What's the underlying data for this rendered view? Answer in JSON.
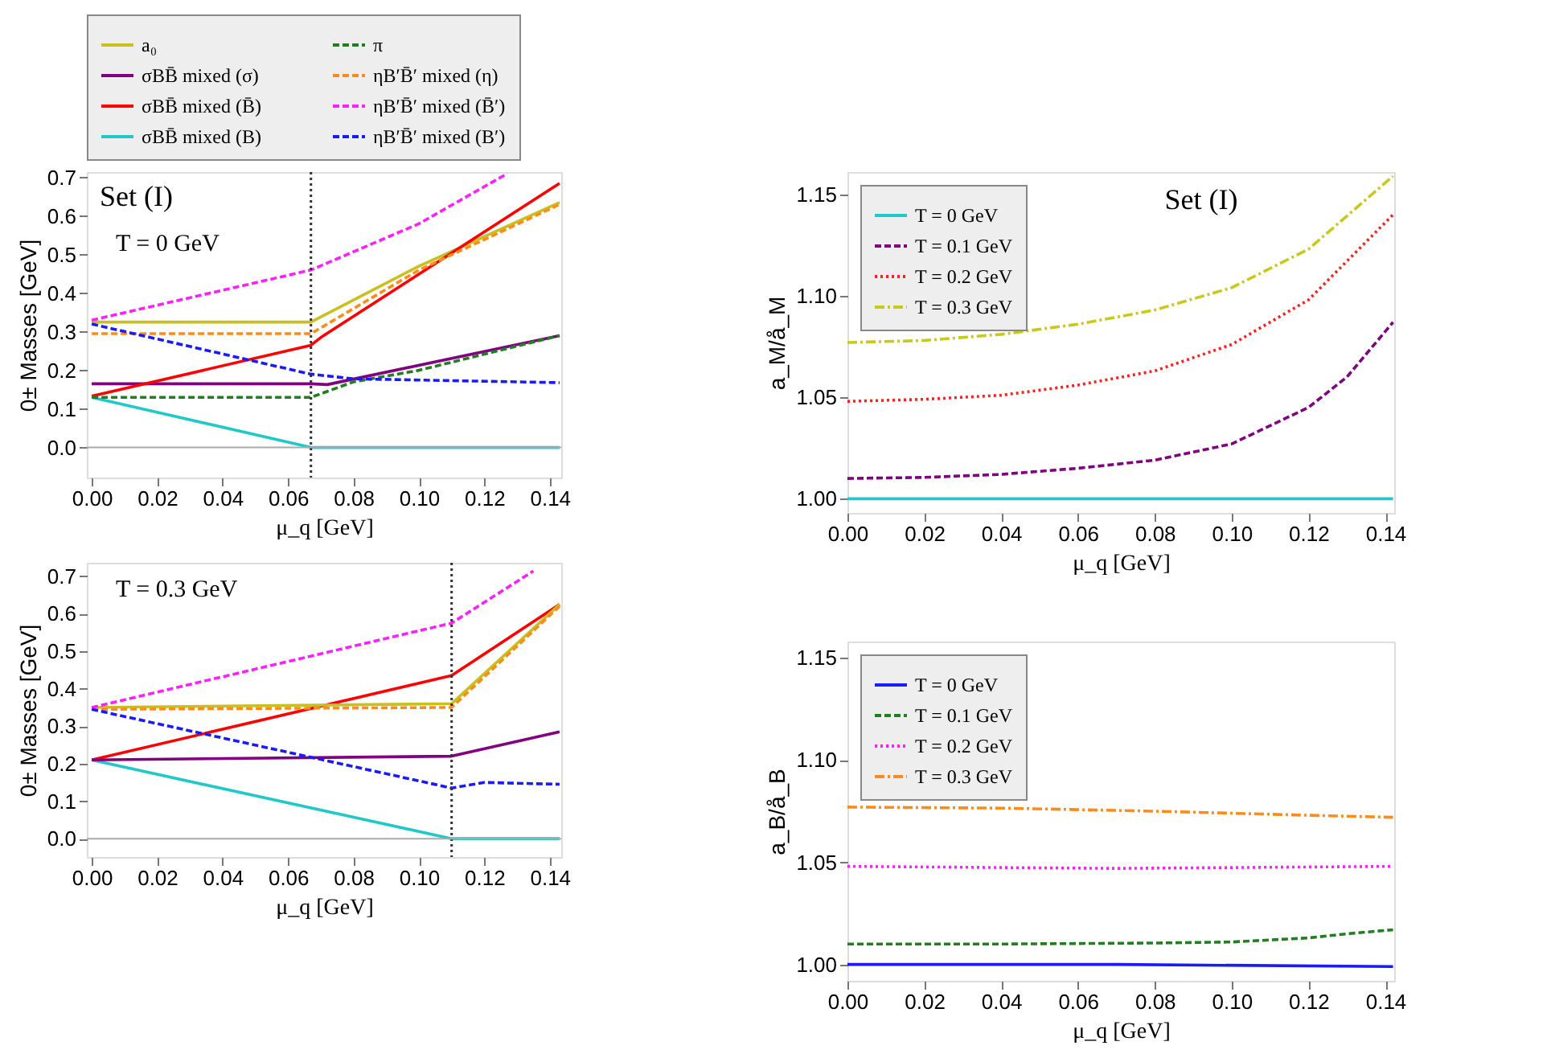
{
  "chart_data": [
    {
      "type": "line",
      "xlabel": "μ_q [GeV]",
      "ylabel": "0± Masses [GeV]",
      "xlim": [
        -0.0015,
        0.1435
      ],
      "ylim": [
        -0.078,
        0.714
      ],
      "xticks": [
        {
          "value": 0,
          "label": "0.00"
        },
        {
          "value": 0.02,
          "label": "0.02"
        },
        {
          "value": 0.04,
          "label": "0.04"
        },
        {
          "value": 0.06,
          "label": "0.06"
        },
        {
          "value": 0.08,
          "label": "0.08"
        },
        {
          "value": 0.1,
          "label": "0.10"
        },
        {
          "value": 0.12,
          "label": "0.12"
        },
        {
          "value": 0.14,
          "label": "0.14"
        }
      ],
      "yticks": [
        {
          "value": 0,
          "label": "0.0"
        },
        0.1,
        0.2,
        0.3,
        0.4,
        0.5,
        0.6,
        0.7
      ],
      "grid": false,
      "legend": "top",
      "annotations": [
        "Set (I)",
        "T = 0 GeV"
      ],
      "ref_lines": [
        {
          "axis": "x",
          "value": 0.067,
          "color": "#333333",
          "line_style": "dotted"
        },
        {
          "axis": "y",
          "value": 0,
          "color": "#aaaaaa",
          "line_style": "solid"
        }
      ],
      "series": [
        {
          "name": "a₀",
          "color": "#c8c020",
          "line_style": "solid",
          "x": [
            0,
            0.067,
            0.1,
            0.143
          ],
          "values": [
            0.325,
            0.325,
            0.47,
            0.635
          ]
        },
        {
          "name": "σBB̄ mixed (σ)",
          "color": "#800080",
          "line_style": "solid",
          "x": [
            0,
            0.067,
            0.072,
            0.143
          ],
          "values": [
            0.165,
            0.165,
            0.163,
            0.29
          ]
        },
        {
          "name": "σBB̄ mixed (B̄)",
          "color": "#ff0000",
          "line_style": "solid",
          "x": [
            0,
            0.067,
            0.07,
            0.143
          ],
          "values": [
            0.133,
            0.265,
            0.285,
            0.685
          ]
        },
        {
          "name": "σBB̄ mixed (B)",
          "color": "#20c8c8",
          "line_style": "solid",
          "x": [
            0,
            0.067,
            0.143
          ],
          "values": [
            0.13,
            0,
            0
          ]
        },
        {
          "name": "π",
          "color": "#208020",
          "line_style": "dashed",
          "x": [
            0,
            0.067,
            0.08,
            0.1,
            0.143
          ],
          "values": [
            0.13,
            0.13,
            0.17,
            0.2,
            0.29
          ]
        },
        {
          "name": "ηB′B̄′ mixed (η)",
          "color": "#ff8c1a",
          "line_style": "dashed",
          "x": [
            0,
            0.067,
            0.1,
            0.143
          ],
          "values": [
            0.295,
            0.295,
            0.46,
            0.63
          ]
        },
        {
          "name": "ηB′B̄′ mixed (B̄′)",
          "color": "#ff20ff",
          "line_style": "dashed",
          "x": [
            0,
            0.067,
            0.1,
            0.127
          ],
          "values": [
            0.33,
            0.46,
            0.58,
            0.71
          ]
        },
        {
          "name": "ηB′B̄′ mixed (B′)",
          "color": "#1a1aff",
          "line_style": "dashed",
          "x": [
            0,
            0.067,
            0.08,
            0.143
          ],
          "values": [
            0.32,
            0.19,
            0.178,
            0.168
          ]
        }
      ]
    },
    {
      "type": "line",
      "xlabel": "μ_q [GeV]",
      "ylabel": "a_M/å_M",
      "xlim": [
        0,
        0.1423
      ],
      "ylim": [
        0.993,
        1.161
      ],
      "xticks": [
        {
          "value": 0,
          "label": "0.00"
        },
        {
          "value": 0.02,
          "label": "0.02"
        },
        {
          "value": 0.04,
          "label": "0.04"
        },
        {
          "value": 0.06,
          "label": "0.06"
        },
        {
          "value": 0.08,
          "label": "0.08"
        },
        {
          "value": 0.1,
          "label": "0.10"
        },
        {
          "value": 0.12,
          "label": "0.12"
        },
        {
          "value": 0.14,
          "label": "0.14"
        }
      ],
      "yticks": [
        {
          "value": 1,
          "label": "1.00"
        },
        1.05,
        {
          "value": 1.1,
          "label": "1.10"
        },
        1.15
      ],
      "grid": false,
      "legend": "top left",
      "annotations": [
        "Set (I)"
      ],
      "series": [
        {
          "name": "T = 0 GeV",
          "color": "#20c8c8",
          "line_style": "solid",
          "x": [
            0,
            0.142
          ],
          "values": [
            1.0,
            1.0
          ]
        },
        {
          "name": "T = 0.1 GeV",
          "color": "#800080",
          "line_style": "dashed",
          "x": [
            0,
            0.02,
            0.04,
            0.06,
            0.08,
            0.1,
            0.12,
            0.13,
            0.142
          ],
          "values": [
            1.01,
            1.0105,
            1.012,
            1.015,
            1.019,
            1.027,
            1.045,
            1.06,
            1.087
          ]
        },
        {
          "name": "T = 0.2 GeV",
          "color": "#ff2020",
          "line_style": "dotted",
          "x": [
            0,
            0.02,
            0.04,
            0.06,
            0.08,
            0.1,
            0.12,
            0.142
          ],
          "values": [
            1.048,
            1.049,
            1.051,
            1.056,
            1.063,
            1.076,
            1.098,
            1.14
          ]
        },
        {
          "name": "T = 0.3 GeV",
          "color": "#c8c820",
          "line_style": "dashdot",
          "x": [
            0,
            0.02,
            0.04,
            0.06,
            0.08,
            0.1,
            0.12,
            0.142
          ],
          "values": [
            1.077,
            1.078,
            1.081,
            1.086,
            1.093,
            1.104,
            1.123,
            1.159
          ]
        }
      ]
    },
    {
      "type": "line",
      "xlabel": "μ_q [GeV]",
      "ylabel": "0± Masses [GeV]",
      "xlim": [
        -0.0015,
        0.1435
      ],
      "ylim": [
        -0.049,
        0.736
      ],
      "xticks": [
        {
          "value": 0,
          "label": "0.00"
        },
        {
          "value": 0.02,
          "label": "0.02"
        },
        {
          "value": 0.04,
          "label": "0.04"
        },
        {
          "value": 0.06,
          "label": "0.06"
        },
        {
          "value": 0.08,
          "label": "0.08"
        },
        {
          "value": 0.1,
          "label": "0.10"
        },
        {
          "value": 0.12,
          "label": "0.12"
        },
        {
          "value": 0.14,
          "label": "0.14"
        }
      ],
      "yticks": [
        {
          "value": 0,
          "label": "0.0"
        },
        0.1,
        0.2,
        0.3,
        0.4,
        0.5,
        0.6,
        0.7
      ],
      "grid": false,
      "annotations": [
        "T = 0.3 GeV"
      ],
      "ref_lines": [
        {
          "axis": "x",
          "value": 0.11,
          "color": "#333333",
          "line_style": "dotted"
        },
        {
          "axis": "y",
          "value": 0,
          "color": "#aaaaaa",
          "line_style": "solid"
        }
      ],
      "series": [
        {
          "color": "#20c8c8",
          "line_style": "solid",
          "x": [
            0,
            0.11,
            0.143
          ],
          "values": [
            0.21,
            0,
            0
          ]
        },
        {
          "color": "#ff0000",
          "line_style": "solid",
          "x": [
            0,
            0.11,
            0.143
          ],
          "values": [
            0.21,
            0.435,
            0.625
          ]
        },
        {
          "color": "#c8c020",
          "line_style": "solid",
          "x": [
            0,
            0.11,
            0.143
          ],
          "values": [
            0.35,
            0.36,
            0.625
          ]
        },
        {
          "color": "#ff8c1a",
          "line_style": "dashed",
          "x": [
            0,
            0.11,
            0.143
          ],
          "values": [
            0.345,
            0.35,
            0.62
          ]
        },
        {
          "color": "#800080",
          "line_style": "solid",
          "x": [
            0,
            0.11,
            0.143
          ],
          "values": [
            0.21,
            0.22,
            0.285
          ]
        },
        {
          "color": "#ff20ff",
          "line_style": "dashed",
          "x": [
            0,
            0.11,
            0.135
          ],
          "values": [
            0.35,
            0.575,
            0.714
          ]
        },
        {
          "color": "#1a1aff",
          "line_style": "dashed",
          "x": [
            0,
            0.11,
            0.12,
            0.143
          ],
          "values": [
            0.345,
            0.135,
            0.15,
            0.145
          ]
        }
      ]
    },
    {
      "type": "line",
      "xlabel": "μ_q [GeV]",
      "ylabel": "a_B/å_B",
      "xlim": [
        0,
        0.1423
      ],
      "ylim": [
        0.992,
        1.158
      ],
      "xticks": [
        {
          "value": 0,
          "label": "0.00"
        },
        {
          "value": 0.02,
          "label": "0.02"
        },
        {
          "value": 0.04,
          "label": "0.04"
        },
        {
          "value": 0.06,
          "label": "0.06"
        },
        {
          "value": 0.08,
          "label": "0.08"
        },
        {
          "value": 0.1,
          "label": "0.10"
        },
        {
          "value": 0.12,
          "label": "0.12"
        },
        {
          "value": 0.14,
          "label": "0.14"
        }
      ],
      "yticks": [
        {
          "value": 1,
          "label": "1.00"
        },
        1.05,
        {
          "value": 1.1,
          "label": "1.10"
        },
        1.15
      ],
      "grid": false,
      "legend": "top left",
      "series": [
        {
          "name": "T = 0 GeV",
          "color": "#1a1aff",
          "line_style": "solid",
          "x": [
            0,
            0.07,
            0.142
          ],
          "values": [
            1.0,
            1.0,
            0.999
          ]
        },
        {
          "name": "T = 0.1 GeV",
          "color": "#208020",
          "line_style": "dashed",
          "x": [
            0,
            0.04,
            0.08,
            0.1,
            0.12,
            0.13,
            0.142
          ],
          "values": [
            1.01,
            1.01,
            1.0105,
            1.011,
            1.013,
            1.015,
            1.017
          ]
        },
        {
          "name": "T = 0.2 GeV",
          "color": "#ff20ff",
          "line_style": "dotted",
          "x": [
            0,
            0.07,
            0.142
          ],
          "values": [
            1.048,
            1.047,
            1.048
          ]
        },
        {
          "name": "T = 0.3 GeV",
          "color": "#ff8c1a",
          "line_style": "dashdot",
          "x": [
            0,
            0.04,
            0.08,
            0.12,
            0.142
          ],
          "values": [
            1.077,
            1.0765,
            1.075,
            1.073,
            1.072
          ]
        }
      ]
    }
  ]
}
